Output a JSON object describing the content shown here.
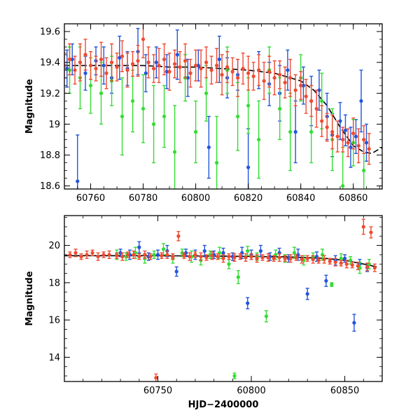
{
  "chart_data": [
    {
      "type": "scatter",
      "panel": "top",
      "title": "",
      "xlabel": "",
      "ylabel": "Magnitude",
      "xlim": [
        60750,
        60871
      ],
      "ylim": [
        19.65,
        18.58
      ],
      "y_inverted": true,
      "xticks": [
        60760,
        60780,
        60800,
        60820,
        60840,
        60860
      ],
      "yticks": [
        18.6,
        18.8,
        19,
        19.2,
        19.4,
        19.6
      ],
      "ytick_labels": [
        "18.6",
        "18.8",
        "19",
        "19.2",
        "19.4",
        "19.6"
      ],
      "error_bars": true,
      "grid": false,
      "model_curve": {
        "color": "#000000",
        "style": "dashed",
        "x": [
          60750,
          60760,
          60770,
          60780,
          60790,
          60800,
          60810,
          60820,
          60830,
          60840,
          60845,
          60850,
          60855,
          60860,
          60864,
          60867,
          60871
        ],
        "y": [
          19.38,
          19.38,
          19.38,
          19.38,
          19.37,
          19.37,
          19.36,
          19.35,
          19.33,
          19.28,
          19.22,
          19.12,
          18.98,
          18.86,
          18.82,
          18.81,
          18.85
        ]
      },
      "series": [
        {
          "color": "#2255dd",
          "x": [
            60751,
            60753,
            60755,
            60758,
            60762,
            60765,
            60768,
            60771,
            60774,
            60778,
            60781,
            60785,
            60789,
            60793,
            60797,
            60801,
            60805,
            60809,
            60812,
            60816,
            60820,
            60824,
            60828,
            60832,
            60835,
            60838,
            60841,
            60844,
            60847,
            60850,
            60852,
            60855,
            60857,
            60859,
            60861,
            60863,
            60865
          ],
          "y": [
            19.36,
            19.42,
            18.63,
            19.33,
            19.41,
            19.38,
            19.3,
            19.43,
            19.36,
            19.47,
            19.33,
            19.4,
            19.34,
            19.45,
            19.3,
            19.38,
            18.85,
            19.42,
            19.3,
            19.32,
            18.72,
            19.35,
            19.26,
            19.2,
            19.35,
            18.95,
            19.25,
            19.15,
            19.22,
            19.05,
            18.93,
            19.02,
            18.96,
            18.85,
            18.92,
            19.15,
            18.88
          ],
          "err": [
            0.12,
            0.1,
            0.3,
            0.11,
            0.09,
            0.12,
            0.1,
            0.14,
            0.11,
            0.15,
            0.12,
            0.1,
            0.11,
            0.16,
            0.12,
            0.1,
            0.2,
            0.15,
            0.13,
            0.1,
            0.25,
            0.12,
            0.14,
            0.18,
            0.13,
            0.2,
            0.12,
            0.16,
            0.13,
            0.15,
            0.14,
            0.12,
            0.1,
            0.13,
            0.11,
            0.2,
            0.12
          ]
        },
        {
          "color": "#33dd33",
          "x": [
            60752,
            60756,
            60760,
            60764,
            60768,
            60772,
            60776,
            60780,
            60784,
            60788,
            60792,
            60796,
            60800,
            60804,
            60808,
            60812,
            60816,
            60820,
            60824,
            60828,
            60832,
            60836,
            60840,
            60844,
            60848,
            60852,
            60856,
            60860,
            60864
          ],
          "y": [
            19.35,
            19.3,
            19.25,
            19.2,
            19.28,
            19.05,
            19.15,
            19.1,
            19.0,
            19.05,
            18.82,
            19.3,
            18.95,
            19.2,
            18.75,
            19.35,
            19.05,
            19.12,
            18.9,
            19.35,
            19.1,
            18.95,
            19.3,
            18.95,
            19.15,
            18.9,
            18.6,
            18.88,
            18.7
          ],
          "err": [
            0.15,
            0.2,
            0.18,
            0.2,
            0.16,
            0.25,
            0.2,
            0.22,
            0.25,
            0.2,
            0.3,
            0.15,
            0.2,
            0.18,
            0.3,
            0.15,
            0.22,
            0.18,
            0.25,
            0.15,
            0.2,
            0.25,
            0.15,
            0.2,
            0.18,
            0.2,
            0.25,
            0.15,
            0.2
          ]
        },
        {
          "color": "#f04a30",
          "x": [
            60750,
            60752,
            60754,
            60756,
            60758,
            60760,
            60762,
            60764,
            60766,
            60768,
            60770,
            60772,
            60774,
            60776,
            60778,
            60780,
            60782,
            60784,
            60786,
            60788,
            60790,
            60792,
            60794,
            60796,
            60798,
            60800,
            60802,
            60804,
            60806,
            60808,
            60810,
            60812,
            60814,
            60816,
            60818,
            60820,
            60822,
            60824,
            60826,
            60828,
            60830,
            60832,
            60834,
            60836,
            60838,
            60840,
            60842,
            60844,
            60846,
            60848,
            60850,
            60852,
            60854,
            60856,
            60858,
            60860,
            60862,
            60864,
            60866
          ],
          "y": [
            19.38,
            19.42,
            19.35,
            19.4,
            19.45,
            19.38,
            19.36,
            19.42,
            19.33,
            19.4,
            19.37,
            19.44,
            19.35,
            19.39,
            19.41,
            19.55,
            19.4,
            19.36,
            19.38,
            19.42,
            19.34,
            19.39,
            19.37,
            19.41,
            19.33,
            19.38,
            19.36,
            19.4,
            19.35,
            19.38,
            19.32,
            19.37,
            19.34,
            19.3,
            19.36,
            19.33,
            19.31,
            19.35,
            19.28,
            19.34,
            19.3,
            19.32,
            19.27,
            19.3,
            19.22,
            19.25,
            19.18,
            19.15,
            19.1,
            19.02,
            18.98,
            18.95,
            18.92,
            18.9,
            18.88,
            18.94,
            18.86,
            18.9,
            18.84
          ],
          "err": [
            0.08,
            0.1,
            0.09,
            0.12,
            0.1,
            0.09,
            0.08,
            0.11,
            0.1,
            0.12,
            0.09,
            0.1,
            0.11,
            0.08,
            0.1,
            0.12,
            0.1,
            0.09,
            0.11,
            0.1,
            0.12,
            0.09,
            0.1,
            0.11,
            0.09,
            0.1,
            0.12,
            0.1,
            0.09,
            0.11,
            0.13,
            0.1,
            0.09,
            0.12,
            0.1,
            0.11,
            0.09,
            0.1,
            0.12,
            0.1,
            0.11,
            0.09,
            0.1,
            0.12,
            0.1,
            0.09,
            0.11,
            0.1,
            0.12,
            0.1,
            0.09,
            0.11,
            0.1,
            0.08,
            0.09,
            0.1,
            0.11,
            0.09,
            0.1
          ]
        }
      ]
    },
    {
      "type": "scatter",
      "panel": "bottom",
      "title": "",
      "xlabel": "HJD−2400000",
      "ylabel": "Magnitude",
      "xlim": [
        60700,
        60870
      ],
      "ylim": [
        21.6,
        12.7
      ],
      "y_inverted": true,
      "xticks": [
        60750,
        60800,
        60850
      ],
      "yticks": [
        14,
        16,
        18,
        20
      ],
      "ytick_labels": [
        "14",
        "16",
        "18",
        "20"
      ],
      "error_bars": true,
      "grid": false,
      "model_curve": {
        "color": "#000000",
        "style": "solid",
        "x": [
          60700,
          60720,
          60740,
          60760,
          60780,
          60800,
          60820,
          60840,
          60850,
          60860,
          60867
        ],
        "y": [
          19.45,
          19.45,
          19.45,
          19.44,
          19.43,
          19.41,
          19.38,
          19.3,
          19.2,
          19.0,
          18.85
        ]
      },
      "series": [
        {
          "color": "#2255dd",
          "x": [
            60730,
            60735,
            60740,
            60745,
            60750,
            60755,
            60760,
            60765,
            60770,
            60775,
            60780,
            60785,
            60790,
            60795,
            60798,
            60800,
            60805,
            60810,
            60815,
            60820,
            60825,
            60830,
            60835,
            60840,
            60845,
            60850,
            60855,
            60858,
            60862
          ],
          "y": [
            19.6,
            19.5,
            19.9,
            19.4,
            19.5,
            19.7,
            18.6,
            19.6,
            19.5,
            19.7,
            19.5,
            19.6,
            19.4,
            19.6,
            16.9,
            19.5,
            19.7,
            19.4,
            19.6,
            19.3,
            19.5,
            17.4,
            19.4,
            18.1,
            19.2,
            19.3,
            15.85,
            19.0,
            18.8
          ],
          "err": [
            0.2,
            0.25,
            0.3,
            0.2,
            0.25,
            0.3,
            0.25,
            0.2,
            0.25,
            0.3,
            0.2,
            0.25,
            0.2,
            0.3,
            0.3,
            0.25,
            0.3,
            0.2,
            0.25,
            0.2,
            0.3,
            0.3,
            0.25,
            0.3,
            0.25,
            0.2,
            0.45,
            0.25,
            0.2
          ]
        },
        {
          "color": "#33dd33",
          "x": [
            60728,
            60733,
            60738,
            60743,
            60748,
            60753,
            60758,
            60763,
            60768,
            60773,
            60778,
            60783,
            60788,
            60791,
            60793,
            60798,
            60803,
            60808,
            60813,
            60818,
            60823,
            60828,
            60833,
            60838,
            60843,
            60848,
            60853,
            60858,
            60863
          ],
          "y": [
            19.5,
            19.4,
            19.6,
            19.3,
            19.5,
            19.8,
            19.3,
            19.6,
            19.4,
            19.2,
            19.5,
            19.6,
            19.0,
            13.0,
            18.3,
            19.7,
            19.4,
            16.2,
            19.5,
            19.3,
            19.6,
            19.2,
            19.4,
            19.5,
            17.9,
            19.3,
            19.2,
            18.8,
            19.0
          ],
          "err": [
            0.25,
            0.2,
            0.3,
            0.25,
            0.2,
            0.3,
            0.25,
            0.2,
            0.3,
            0.25,
            0.2,
            0.3,
            0.25,
            0.15,
            0.35,
            0.25,
            0.2,
            0.3,
            0.25,
            0.2,
            0.3,
            0.25,
            0.2,
            0.3,
            0.1,
            0.25,
            0.2,
            0.3,
            0.25
          ]
        },
        {
          "color": "#f04a30",
          "x": [
            60703,
            60706,
            60709,
            60712,
            60715,
            60718,
            60721,
            60724,
            60728,
            60731,
            60734,
            60737,
            60740,
            60743,
            60746,
            60749,
            60752,
            60755,
            60758,
            60761,
            60764,
            60767,
            60770,
            60773,
            60776,
            60779,
            60782,
            60785,
            60788,
            60791,
            60794,
            60797,
            60800,
            60803,
            60806,
            60809,
            60812,
            60815,
            60818,
            60821,
            60824,
            60827,
            60830,
            60833,
            60836,
            60839,
            60842,
            60845,
            60848,
            60851,
            60854,
            60857,
            60860,
            60862,
            60864,
            60866
          ],
          "y": [
            19.5,
            19.6,
            19.4,
            19.5,
            19.6,
            19.4,
            19.5,
            19.5,
            19.45,
            19.4,
            19.5,
            19.5,
            19.4,
            19.5,
            19.4,
            12.9,
            19.45,
            19.5,
            19.4,
            20.5,
            19.45,
            19.4,
            19.5,
            19.4,
            19.35,
            19.45,
            19.4,
            19.3,
            19.4,
            19.35,
            19.4,
            19.35,
            19.4,
            19.3,
            19.35,
            19.35,
            19.3,
            19.35,
            19.3,
            19.3,
            19.35,
            19.25,
            19.3,
            19.25,
            19.2,
            19.25,
            19.15,
            19.1,
            19.05,
            19.0,
            18.95,
            18.9,
            21.0,
            18.85,
            20.7,
            18.8
          ],
          "err": [
            0.15,
            0.2,
            0.15,
            0.2,
            0.15,
            0.2,
            0.15,
            0.2,
            0.15,
            0.2,
            0.15,
            0.2,
            0.15,
            0.2,
            0.15,
            0.2,
            0.15,
            0.2,
            0.15,
            0.25,
            0.15,
            0.2,
            0.15,
            0.2,
            0.15,
            0.2,
            0.15,
            0.2,
            0.15,
            0.2,
            0.15,
            0.2,
            0.15,
            0.2,
            0.15,
            0.2,
            0.15,
            0.2,
            0.15,
            0.2,
            0.15,
            0.2,
            0.15,
            0.2,
            0.15,
            0.2,
            0.15,
            0.2,
            0.15,
            0.2,
            0.15,
            0.2,
            0.4,
            0.2,
            0.3,
            0.2
          ]
        }
      ]
    }
  ]
}
